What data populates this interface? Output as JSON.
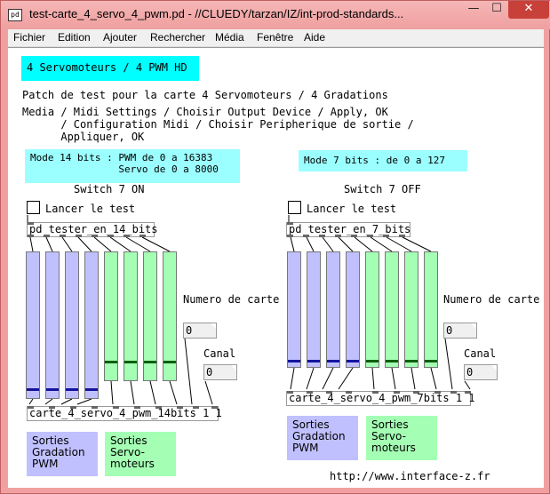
{
  "window": {
    "title": "test-carte_4_servo_4_pwm.pd  - //CLUEDY/tarzan/IZ/int-prod-standards...",
    "app_icon_text": "pd",
    "minimize_glyph": "—",
    "maximize_glyph": "☐",
    "close_glyph": "✕"
  },
  "menu": [
    "Fichier",
    "Edition",
    "Ajouter",
    "Rechercher",
    "Média",
    "Fenêtre",
    "Aide"
  ],
  "header": {
    "banner": "4 Servomoteurs / 4 PWM HD",
    "description": "Patch de test pour la carte 4 Servomoteurs / 4 Gradations",
    "instructions": "Media / Midi Settings / Choisir Output Device / Apply, OK\n      / Configuration Midi / Choisir Peripherique de sortie /\n      Appliquer, OK"
  },
  "left": {
    "mode_text": "Mode 14 bits : PWM de 0 a 16383\n               Servo de 0 a 8000",
    "switch_label": "Switch 7 ON",
    "test_label": "Lancer le test",
    "tester_object": "pd tester_en_14_bits",
    "numero_label": "Numero de carte",
    "numero_value": "0",
    "canal_label": "Canal",
    "canal_value": "0",
    "output_object": "carte_4_servo_4_pwm_14bits 1 1",
    "legend_pwm": "Sorties\nGradation\nPWM",
    "legend_servo": "Sorties\nServo-\nmoteurs",
    "pwm_levels": [
      0.04,
      0.04,
      0.04,
      0.04
    ],
    "servo_levels": [
      0.12,
      0.12,
      0.12,
      0.12
    ]
  },
  "right": {
    "mode_text": "Mode 7 bits : de 0 a 127",
    "switch_label": "Switch 7 OFF",
    "test_label": "Lancer le test",
    "tester_object": "pd tester_en_7_bits",
    "numero_label": "Numero de carte",
    "numero_value": "0",
    "canal_label": "Canal",
    "canal_value": "0",
    "output_object": "carte_4_servo_4_pwm_7bits 1 1",
    "legend_pwm": "Sorties\nGradation\nPWM",
    "legend_servo": "Sorties\nServo-\nmoteurs",
    "pwm_levels": [
      0.02,
      0.02,
      0.02,
      0.02
    ],
    "servo_levels": [
      0.02,
      0.02,
      0.02,
      0.02
    ]
  },
  "footer": {
    "url": "http://www.interface-z.fr"
  },
  "colors": {
    "banner_bg": "#00ffff",
    "mode_bg": "#9cffff",
    "pwm_bg": "#c0c0ff",
    "servo_bg": "#a4ffb4"
  }
}
